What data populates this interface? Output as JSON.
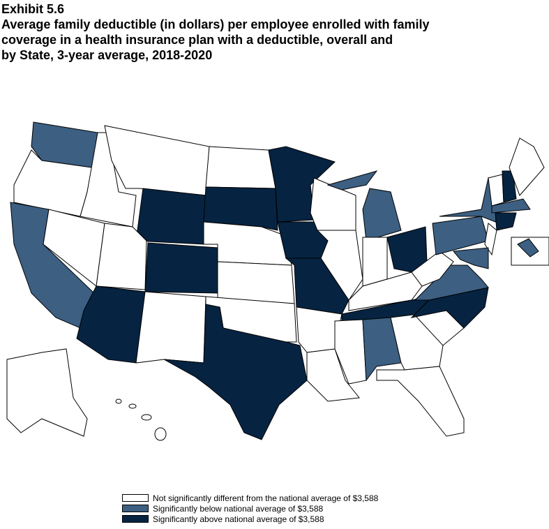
{
  "header": {
    "exhibit": "Exhibit 5.6",
    "title_lines": [
      "Average family deductible (in dollars) per employee enrolled with family",
      "coverage in a health insurance plan with a deductible, overall and",
      "by State, 3-year average, 2018-2020"
    ]
  },
  "legend": [
    {
      "label": "Not significantly different from the national average of $3,588",
      "color": "#ffffff"
    },
    {
      "label": "Significantly below national average of $3,588",
      "color": "#3c5f82"
    },
    {
      "label": "Significantly above national average of $3,588",
      "color": "#062341"
    }
  ]
}
